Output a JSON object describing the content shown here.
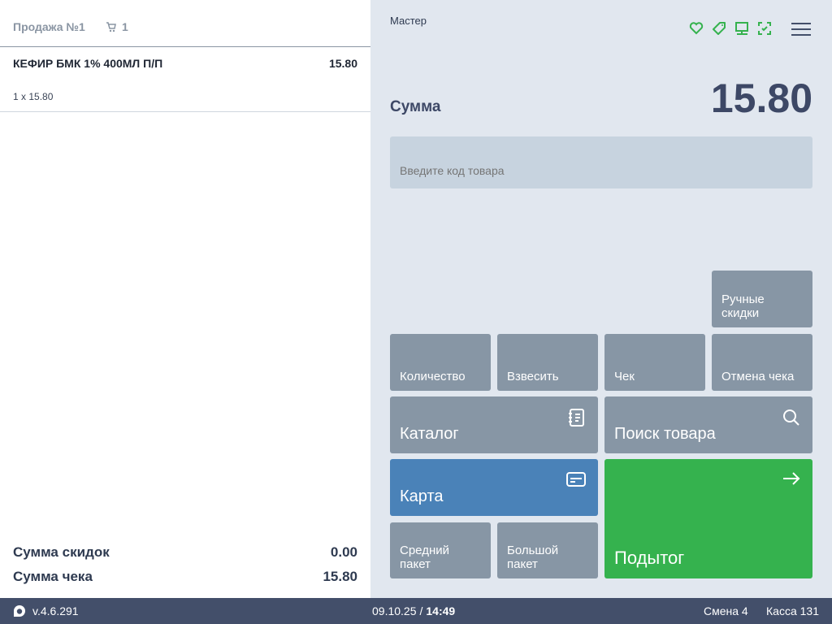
{
  "sale": {
    "title": "Продажа №1",
    "cart_count": "1"
  },
  "items": [
    {
      "name": "КЕФИР БМК 1% 400МЛ П/П",
      "price": "15.80",
      "qty_line": "1 x 15.80"
    }
  ],
  "totals": {
    "discount_label": "Сумма скидок",
    "discount_value": "0.00",
    "check_label": "Сумма чека",
    "check_value": "15.80"
  },
  "header": {
    "user": "Мастер",
    "sum_label": "Сумма",
    "sum_value": "15.80",
    "icons": [
      "heart-icon",
      "tag-icon",
      "monitor-icon",
      "scan-check-icon",
      "menu-icon"
    ]
  },
  "input": {
    "placeholder": "Введите код товара",
    "value": ""
  },
  "buttons": {
    "manual_discounts": "Ручные скидки",
    "quantity": "Количество",
    "weigh": "Взвесить",
    "check": "Чек",
    "cancel_check": "Отмена чека",
    "catalog": "Каталог",
    "search": "Поиск товара",
    "card": "Карта",
    "medium_bag": "Средний пакет",
    "big_bag": "Большой пакет",
    "subtotal": "Подытог"
  },
  "status": {
    "version": "v.4.6.291",
    "date": "09.10.25",
    "separator": "/",
    "time": "14:49",
    "shift": "Смена 4",
    "register": "Касса 131"
  },
  "colors": {
    "accent_green": "#35b24e",
    "card_blue": "#4a82b8",
    "button_gray": "#8796a5",
    "status_bar": "#434f6a"
  }
}
